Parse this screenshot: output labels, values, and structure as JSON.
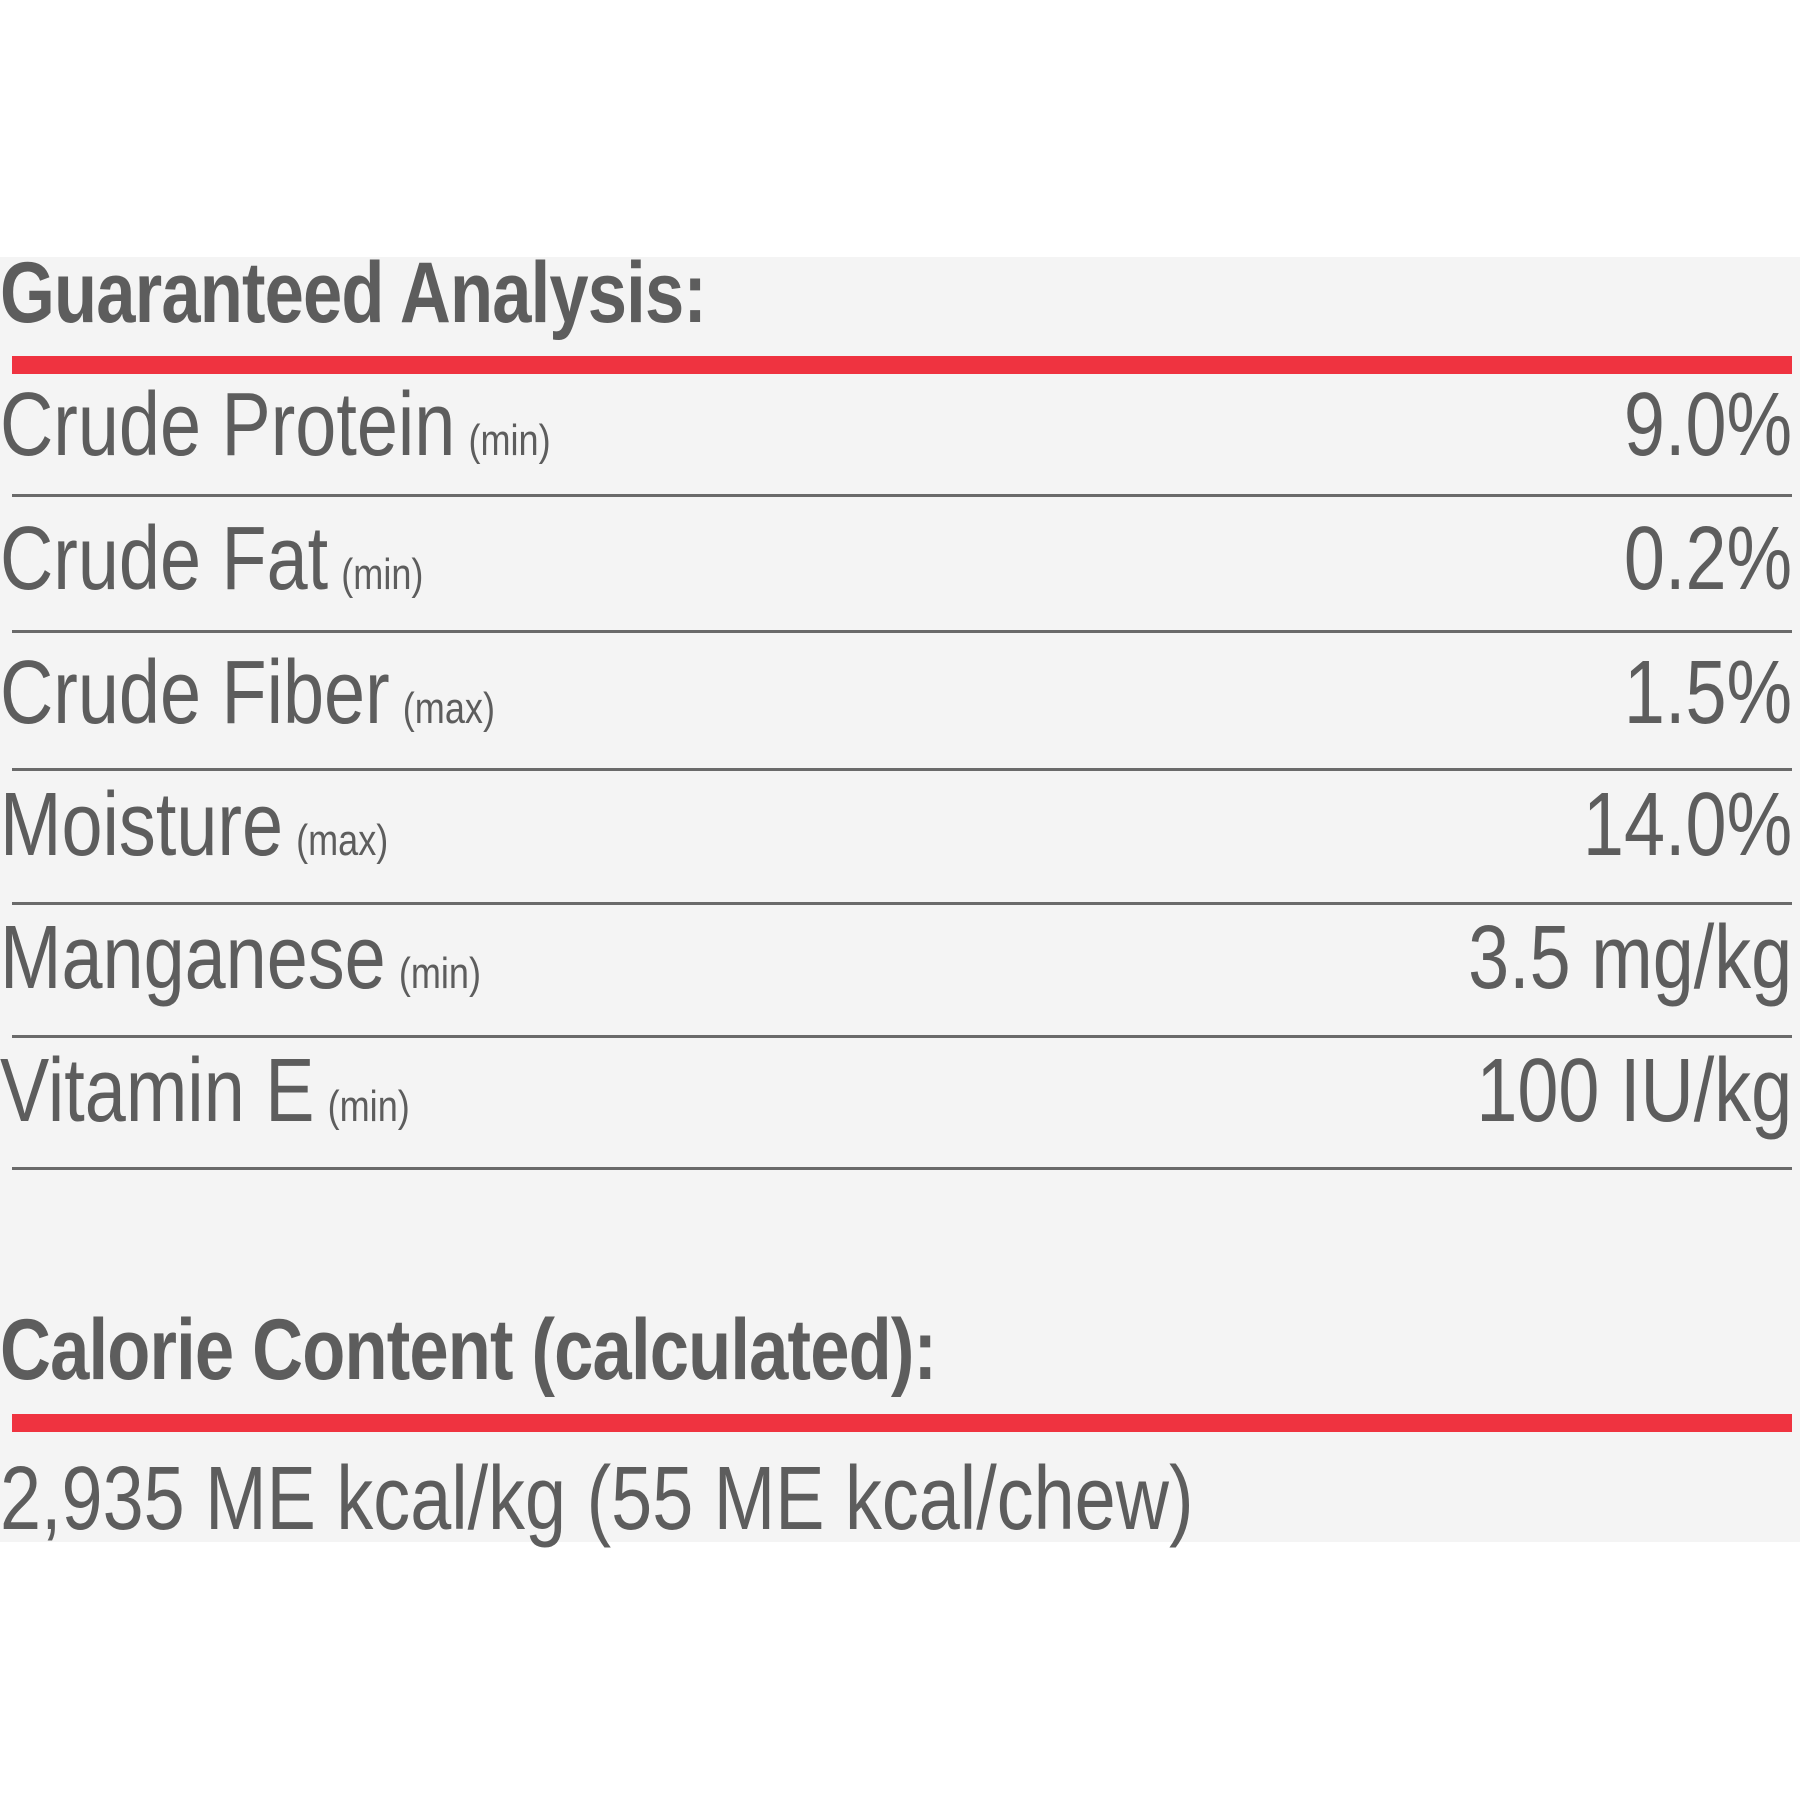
{
  "guaranteed_analysis": {
    "title": "Guaranteed Analysis:",
    "rows": [
      {
        "name": "Crude Protein",
        "qualifier": "(min)",
        "value": "9.0%"
      },
      {
        "name": "Crude Fat",
        "qualifier": "(min)",
        "value": "0.2%"
      },
      {
        "name": "Crude Fiber",
        "qualifier": "(max)",
        "value": "1.5%"
      },
      {
        "name": "Moisture",
        "qualifier": "(max)",
        "value": "14.0%"
      },
      {
        "name": "Manganese",
        "qualifier": "(min)",
        "value": "3.5 mg/kg"
      },
      {
        "name": "Vitamin E",
        "qualifier": "(min)",
        "value": "100 IU/kg"
      }
    ]
  },
  "calorie_content": {
    "title": "Calorie Content (calculated):",
    "value": "2,935 ME kcal/kg (55 ME kcal/chew)"
  },
  "colors": {
    "accent_red": "#ef3340",
    "text_gray": "#5d5d5d",
    "panel_bg": "#f4f4f4"
  }
}
